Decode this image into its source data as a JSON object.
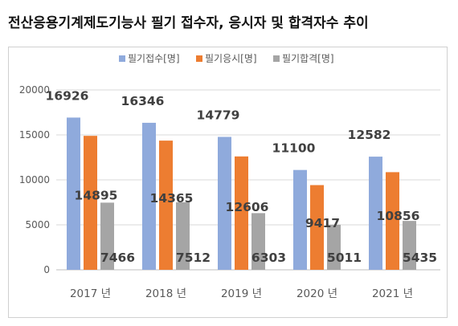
{
  "title": "전산응용기계제도기능사 필기 접수자, 응시자 및 합격자수 추이",
  "colors": {
    "frame_border": "#d0d0d0",
    "gridline": "#d9d9d9",
    "text": "#595959",
    "data_label": "#404040"
  },
  "chart_data": {
    "type": "bar",
    "categories": [
      "2017 년",
      "2018 년",
      "2019 년",
      "2020 년",
      "2021 년"
    ],
    "series": [
      {
        "name": "필기접수[명]",
        "color": "#8faadc",
        "values": [
          16926,
          16346,
          14779,
          11100,
          12582
        ]
      },
      {
        "name": "필기응시[명]",
        "color": "#ed7d31",
        "values": [
          14895,
          14365,
          12606,
          9417,
          10856
        ]
      },
      {
        "name": "필기합격[명]",
        "color": "#a5a5a5",
        "values": [
          7466,
          7512,
          6303,
          5011,
          5435
        ]
      }
    ],
    "yticks": [
      0,
      5000,
      10000,
      15000,
      20000
    ],
    "ylim": [
      0,
      20000
    ],
    "grid": true,
    "legend_position": "top"
  }
}
